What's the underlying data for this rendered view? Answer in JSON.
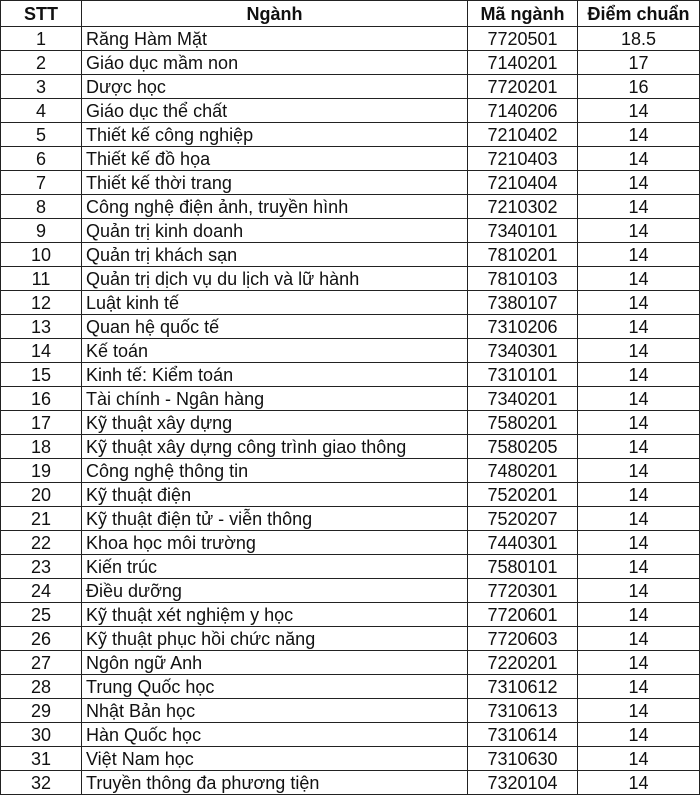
{
  "table": {
    "headers": [
      "STT",
      "Ngành",
      "Mã ngành",
      "Điểm chuẩn"
    ],
    "rows": [
      [
        "1",
        "Răng Hàm Mặt",
        "7720501",
        "18.5"
      ],
      [
        "2",
        "Giáo dục mầm non",
        "7140201",
        "17"
      ],
      [
        "3",
        "Dược học",
        "7720201",
        "16"
      ],
      [
        "4",
        "Giáo dục thể chất",
        "7140206",
        "14"
      ],
      [
        "5",
        "Thiết kế công nghiệp",
        "7210402",
        "14"
      ],
      [
        "6",
        "Thiết kế đồ họa",
        "7210403",
        "14"
      ],
      [
        "7",
        "Thiết kế thời trang",
        "7210404",
        "14"
      ],
      [
        "8",
        "Công nghệ điện ảnh, truyền hình",
        "7210302",
        "14"
      ],
      [
        "9",
        "Quản trị kinh doanh",
        "7340101",
        "14"
      ],
      [
        "10",
        "Quản trị khách sạn",
        "7810201",
        "14"
      ],
      [
        "11",
        "Quản trị dịch vụ du lịch và lữ hành",
        "7810103",
        "14"
      ],
      [
        "12",
        "Luật kinh tế",
        "7380107",
        "14"
      ],
      [
        "13",
        "Quan hệ quốc tế",
        "7310206",
        "14"
      ],
      [
        "14",
        "Kế toán",
        "7340301",
        "14"
      ],
      [
        "15",
        "Kinh tế: Kiểm toán",
        "7310101",
        "14"
      ],
      [
        "16",
        "Tài chính - Ngân hàng",
        "7340201",
        "14"
      ],
      [
        "17",
        "Kỹ thuật xây dựng",
        "7580201",
        "14"
      ],
      [
        "18",
        "Kỹ thuật xây dựng công trình giao thông",
        "7580205",
        "14"
      ],
      [
        "19",
        "Công nghệ thông tin",
        "7480201",
        "14"
      ],
      [
        "20",
        "Kỹ thuật điện",
        "7520201",
        "14"
      ],
      [
        "21",
        "Kỹ thuật điện tử - viễn thông",
        "7520207",
        "14"
      ],
      [
        "22",
        "Khoa học môi trường",
        "7440301",
        "14"
      ],
      [
        "23",
        "Kiến trúc",
        "7580101",
        "14"
      ],
      [
        "24",
        "Điều dưỡng",
        "7720301",
        "14"
      ],
      [
        "25",
        "Kỹ thuật xét nghiệm y học",
        "7720601",
        "14"
      ],
      [
        "26",
        "Kỹ thuật phục hồi chức năng",
        "7720603",
        "14"
      ],
      [
        "27",
        "Ngôn ngữ Anh",
        "7220201",
        "14"
      ],
      [
        "28",
        "Trung Quốc học",
        "7310612",
        "14"
      ],
      [
        "29",
        "Nhật Bản học",
        "7310613",
        "14"
      ],
      [
        "30",
        "Hàn Quốc học",
        "7310614",
        "14"
      ],
      [
        "31",
        "Việt Nam học",
        "7310630",
        "14"
      ],
      [
        "32",
        "Truyền thông đa phương tiện",
        "7320104",
        "14"
      ]
    ]
  }
}
